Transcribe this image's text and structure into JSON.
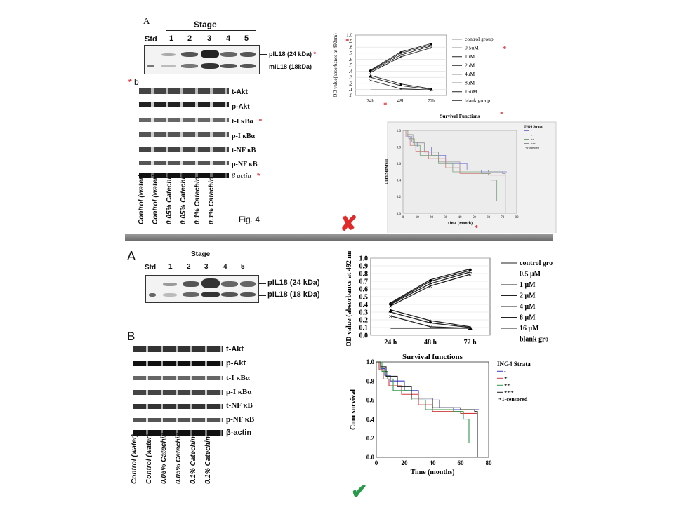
{
  "figure_label": "Fig. 4",
  "top": {
    "panel_a_letter": "A",
    "panel_b_letter": "b",
    "stage_title": "Stage",
    "std_label": "Std",
    "lanes": [
      "1",
      "2",
      "3",
      "4",
      "5"
    ],
    "band_labels": [
      "pIL18 (24 kDa)",
      "mIL18 (18kDa)"
    ],
    "wb_labels": [
      "t-Akt",
      "p-Akt",
      "t-I κBα",
      "p-I κBα",
      "t-NF κB",
      "p-NF κB",
      "β actin"
    ],
    "lane_labels": [
      "Control (water)",
      "Control (water)",
      "0.05% Catechin",
      "0.05% Catechin",
      "0.1% Catechin",
      "0.1% Catechin"
    ],
    "asterisk": "*",
    "cross_mark": "✘"
  },
  "bottom": {
    "panel_a_letter": "A",
    "panel_b_letter": "B",
    "stage_title": "Stage",
    "std_label": "Std",
    "lanes": [
      "1",
      "2",
      "3",
      "4",
      "5"
    ],
    "band_labels": [
      "pIL18 (24 kDa)",
      "pIL18 (18 kDa)"
    ],
    "wb_labels": [
      "t-Akt",
      "p-Akt",
      "t-I κBα",
      "p-I κBα",
      "t-NF κB",
      "p-NF κB",
      "β-actin"
    ],
    "lane_labels": [
      "Control (water)",
      "Control (water)",
      "0.05% Catechin",
      "0.05% Catechin",
      "0.1% Catechin",
      "0.1% Catechin"
    ],
    "check_mark": "✔"
  },
  "chart_data": [
    {
      "type": "line",
      "id": "od-top",
      "title": "",
      "ylabel": "OD value(absorbance at 492nm)",
      "xlabel": "",
      "categories": [
        "24h",
        "48h",
        "72h"
      ],
      "ylim": [
        0,
        1.0
      ],
      "yticks": [
        "1.0",
        ".9",
        ".8",
        ".7",
        ".6",
        ".5",
        ".4",
        ".3",
        ".2",
        ".1",
        ".0"
      ],
      "series": [
        {
          "name": "control group",
          "values": [
            0.42,
            0.72,
            0.86
          ]
        },
        {
          "name": "0.5uM",
          "values": [
            0.41,
            0.7,
            0.84
          ]
        },
        {
          "name": "1uM",
          "values": [
            0.4,
            0.67,
            0.82
          ]
        },
        {
          "name": "2uM",
          "values": [
            0.38,
            0.64,
            0.79
          ]
        },
        {
          "name": "4uM",
          "values": [
            0.33,
            0.19,
            0.11
          ]
        },
        {
          "name": "8uM",
          "values": [
            0.3,
            0.16,
            0.1
          ]
        },
        {
          "name": "16uM",
          "values": [
            0.25,
            0.11,
            0.09
          ]
        },
        {
          "name": "blank group",
          "values": [
            0.09,
            0.09,
            0.09
          ]
        }
      ]
    },
    {
      "type": "line",
      "id": "od-bottom",
      "title": "",
      "ylabel": "OD value (absorbance at 492 nm)",
      "xlabel": "",
      "categories": [
        "24 h",
        "48 h",
        "72 h"
      ],
      "ylim": [
        0,
        1.0
      ],
      "yticks": [
        "0.0",
        "0.1",
        "0.2",
        "0.3",
        "0.4",
        "0.5",
        "0.6",
        "0.7",
        "0.8",
        "0.9",
        "1.0"
      ],
      "series": [
        {
          "name": "control gro",
          "values": [
            0.42,
            0.72,
            0.86
          ]
        },
        {
          "name": "0.5 μM",
          "values": [
            0.41,
            0.7,
            0.84
          ]
        },
        {
          "name": "1 μM",
          "values": [
            0.4,
            0.67,
            0.82
          ]
        },
        {
          "name": "2 μM",
          "values": [
            0.38,
            0.64,
            0.79
          ]
        },
        {
          "name": "4 μM",
          "values": [
            0.33,
            0.19,
            0.11
          ]
        },
        {
          "name": "8 μM",
          "values": [
            0.3,
            0.16,
            0.1
          ]
        },
        {
          "name": "16 μM",
          "values": [
            0.25,
            0.11,
            0.09
          ]
        },
        {
          "name": "blank gro",
          "values": [
            0.09,
            0.09,
            0.09
          ]
        }
      ]
    },
    {
      "type": "line",
      "id": "survival-top",
      "title": "Survival Functions",
      "xlabel": "Time (Month)",
      "ylabel": "Cum Survival",
      "legend_title": "ING4 Strata",
      "legend": [
        "-",
        "+",
        "++",
        "+++",
        "+1-censored"
      ],
      "xlim": [
        0,
        80
      ],
      "ylim": [
        0,
        1.0
      ],
      "xticks": [
        "0",
        "10",
        "20",
        "30",
        "40",
        "50",
        "60",
        "70",
        "80"
      ],
      "yticks": [
        "0.0",
        "0.2",
        "0.4",
        "0.6",
        "0.8",
        "1.0"
      ],
      "series": [
        {
          "name": "-",
          "color": "#7a7ad0",
          "x": [
            0,
            3,
            6,
            10,
            20,
            30,
            45,
            55,
            70,
            73
          ],
          "y": [
            1.0,
            0.93,
            0.86,
            0.8,
            0.7,
            0.6,
            0.52,
            0.5,
            0.5,
            0.5
          ]
        },
        {
          "name": "+",
          "color": "#d07a7a",
          "x": [
            0,
            2,
            5,
            9,
            18,
            30,
            40,
            60,
            72
          ],
          "y": [
            1.0,
            0.92,
            0.82,
            0.75,
            0.66,
            0.55,
            0.48,
            0.46,
            0.46
          ]
        },
        {
          "name": "++",
          "color": "#7aa07a",
          "x": [
            0,
            4,
            8,
            12,
            25,
            35,
            55,
            62,
            66
          ],
          "y": [
            1.0,
            0.9,
            0.82,
            0.7,
            0.6,
            0.5,
            0.48,
            0.4,
            0.15
          ]
        },
        {
          "name": "+++",
          "color": "#909090",
          "x": [
            0,
            3,
            7,
            15,
            25,
            40,
            60,
            70,
            72
          ],
          "y": [
            1.0,
            0.95,
            0.85,
            0.74,
            0.62,
            0.52,
            0.5,
            0.48,
            0.0
          ]
        }
      ]
    },
    {
      "type": "line",
      "id": "survival-bottom",
      "title": "Survival functions",
      "xlabel": "Time (months)",
      "ylabel": "Cum survival",
      "legend_title": "ING4 Strata",
      "legend": [
        "-",
        "+",
        "++",
        "+++",
        "+1-censored"
      ],
      "xlim": [
        0,
        80
      ],
      "ylim": [
        0,
        1.0
      ],
      "xticks": [
        "0",
        "20",
        "40",
        "60",
        "80"
      ],
      "yticks": [
        "0.0",
        "0.2",
        "0.4",
        "0.6",
        "0.8",
        "1.0"
      ],
      "series": [
        {
          "name": "-",
          "color": "#3b3bd0",
          "x": [
            0,
            3,
            6,
            10,
            20,
            30,
            45,
            55,
            70,
            73
          ],
          "y": [
            1.0,
            0.93,
            0.86,
            0.8,
            0.7,
            0.6,
            0.52,
            0.5,
            0.5,
            0.5
          ]
        },
        {
          "name": "+",
          "color": "#d03b3b",
          "x": [
            0,
            2,
            5,
            9,
            18,
            30,
            40,
            60,
            72
          ],
          "y": [
            1.0,
            0.92,
            0.82,
            0.75,
            0.66,
            0.55,
            0.48,
            0.46,
            0.46
          ]
        },
        {
          "name": "++",
          "color": "#2f9a4a",
          "x": [
            0,
            4,
            8,
            12,
            25,
            35,
            55,
            62,
            66
          ],
          "y": [
            1.0,
            0.9,
            0.82,
            0.7,
            0.6,
            0.5,
            0.48,
            0.4,
            0.15
          ]
        },
        {
          "name": "+++",
          "color": "#222222",
          "x": [
            0,
            3,
            7,
            15,
            25,
            40,
            60,
            70,
            72
          ],
          "y": [
            1.0,
            0.95,
            0.85,
            0.74,
            0.62,
            0.52,
            0.5,
            0.48,
            0.0
          ]
        }
      ]
    }
  ]
}
